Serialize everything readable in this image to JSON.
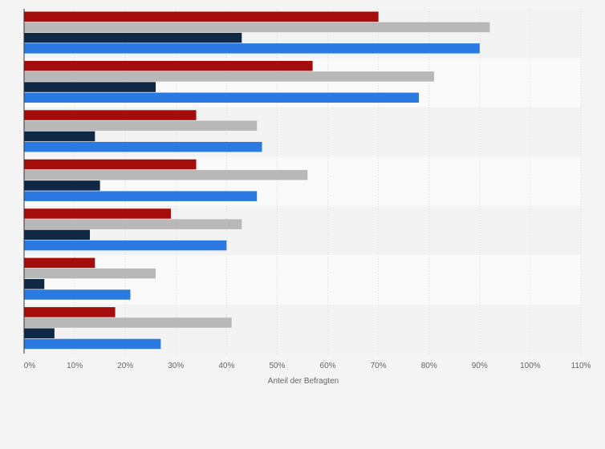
{
  "chart_data": {
    "type": "bar",
    "orientation": "horizontal",
    "categories": [
      "",
      "",
      "",
      "",
      "",
      "",
      ""
    ],
    "series": [
      {
        "color": "#a50d0d",
        "values": [
          70,
          57,
          34,
          34,
          29,
          14,
          18
        ]
      },
      {
        "color": "#b8b8b8",
        "values": [
          92,
          81,
          46,
          56,
          43,
          26,
          41
        ]
      },
      {
        "color": "#0f2843",
        "values": [
          43,
          26,
          14,
          15,
          13,
          4,
          6
        ]
      },
      {
        "color": "#2a7ae2",
        "values": [
          90,
          78,
          47,
          46,
          40,
          21,
          27
        ]
      }
    ],
    "xlim": [
      0,
      110
    ],
    "xticks": [
      0,
      10,
      20,
      30,
      40,
      50,
      60,
      70,
      80,
      90,
      100,
      110
    ],
    "xtick_labels": [
      "0%",
      "10%",
      "20%",
      "30%",
      "40%",
      "50%",
      "60%",
      "70%",
      "80%",
      "90%",
      "100%",
      "110%"
    ],
    "xlabel": "Anteil der Befragten",
    "grid": true,
    "legend": "none"
  }
}
